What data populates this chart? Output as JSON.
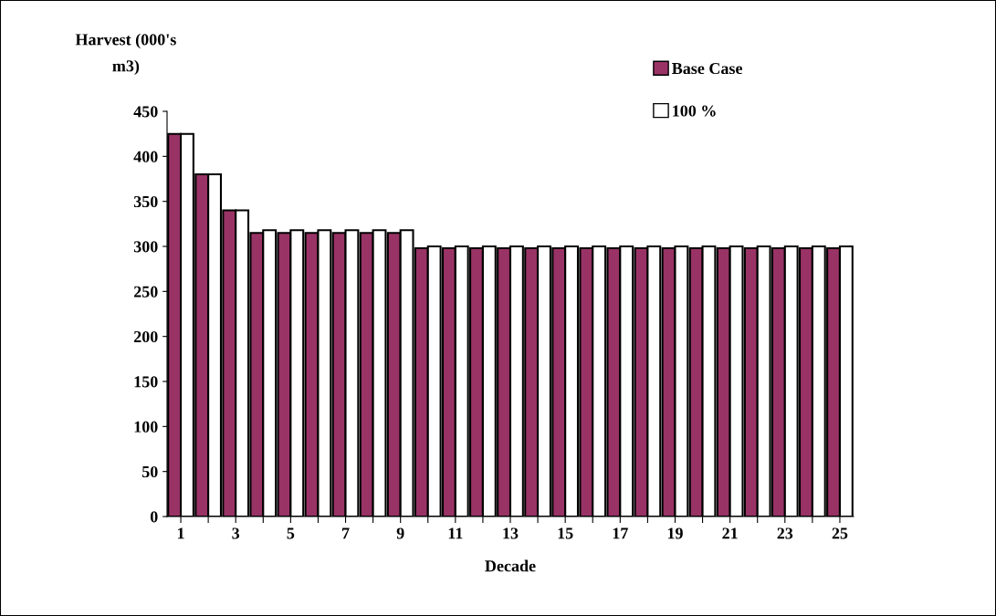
{
  "chart_data": {
    "type": "bar",
    "ylabel": "Harvest (000's\nm3)",
    "xlabel": "Decade",
    "categories": [
      "1",
      null,
      "3",
      null,
      "5",
      null,
      "7",
      null,
      "9",
      null,
      "11",
      null,
      "13",
      null,
      "15",
      null,
      "17",
      null,
      "19",
      null,
      "21",
      null,
      "23",
      null,
      "25"
    ],
    "series": [
      {
        "name": "Base Case",
        "color": "#993366",
        "values": [
          425,
          380,
          340,
          315,
          315,
          315,
          315,
          315,
          315,
          298,
          298,
          298,
          298,
          298,
          298,
          298,
          298,
          298,
          298,
          298,
          298,
          298,
          298,
          298,
          298
        ]
      },
      {
        "name": "100 %",
        "color": "#ffffff",
        "values": [
          425,
          380,
          340,
          318,
          318,
          318,
          318,
          318,
          318,
          300,
          300,
          300,
          300,
          300,
          300,
          300,
          300,
          300,
          300,
          300,
          300,
          300,
          300,
          300,
          300
        ]
      }
    ],
    "ylim": [
      0,
      450
    ],
    "yticks": [
      0,
      50,
      100,
      150,
      200,
      250,
      300,
      350,
      400,
      450
    ],
    "grid": false,
    "legend": "top right"
  }
}
